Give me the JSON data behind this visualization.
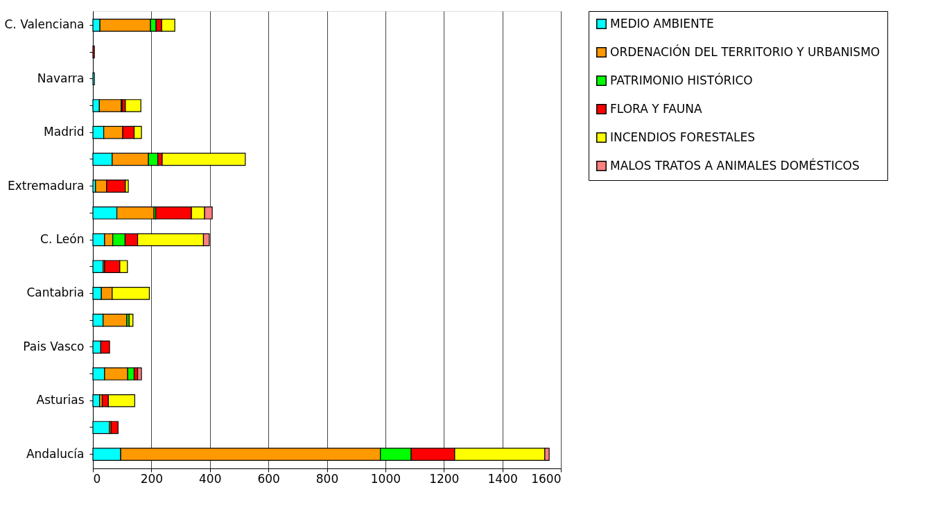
{
  "chart_data": {
    "type": "bar",
    "orientation": "horizontal",
    "stacked": true,
    "categories": [
      "C. Valenciana",
      null,
      "Navarra",
      null,
      "Madrid",
      null,
      "Extremadura",
      null,
      "C. León",
      null,
      "Cantabria",
      null,
      "Pais Vasco",
      null,
      "Asturias",
      null,
      "Andalucía"
    ],
    "series": [
      {
        "name": "MEDIO AMBIENTE",
        "color": "#00ffff",
        "values": [
          24,
          null,
          5,
          22,
          37,
          66,
          9,
          82,
          40,
          35,
          29,
          35,
          27,
          40,
          23,
          56,
          95
        ]
      },
      {
        "name": "ORDENACIÓN DEL TERRITORIO Y URBANISMO",
        "color": "#ff9900",
        "values": [
          173,
          null,
          null,
          75,
          65,
          124,
          38,
          127,
          28,
          5,
          37,
          81,
          null,
          79,
          9,
          6,
          888
        ]
      },
      {
        "name": "PATRIMONIO HISTÓRICO",
        "color": "#00ff00",
        "values": [
          19,
          null,
          null,
          3,
          null,
          32,
          null,
          6,
          42,
          null,
          null,
          8,
          null,
          22,
          null,
          null,
          105
        ]
      },
      {
        "name": "FLORA Y FAUNA",
        "color": "#ff0000",
        "values": [
          19,
          5,
          null,
          11,
          39,
          15,
          64,
          122,
          43,
          52,
          null,
          null,
          30,
          12,
          21,
          24,
          149
        ]
      },
      {
        "name": "INCENDIOS FORESTALES",
        "color": "#ffff00",
        "values": [
          45,
          null,
          null,
          53,
          25,
          284,
          10,
          45,
          225,
          26,
          127,
          13,
          null,
          null,
          90,
          null,
          308
        ]
      },
      {
        "name": "MALOS TRATOS A ANIMALES DOMÉSTICOS",
        "color": "#ff8080",
        "values": [
          null,
          null,
          null,
          null,
          null,
          null,
          null,
          26,
          20,
          null,
          null,
          null,
          null,
          13,
          null,
          null,
          15
        ]
      }
    ],
    "xlim": [
      0,
      1600
    ],
    "xticks": [
      0,
      200,
      400,
      600,
      800,
      1000,
      1200,
      1400,
      1600
    ],
    "grid": "x",
    "legend": "right"
  }
}
